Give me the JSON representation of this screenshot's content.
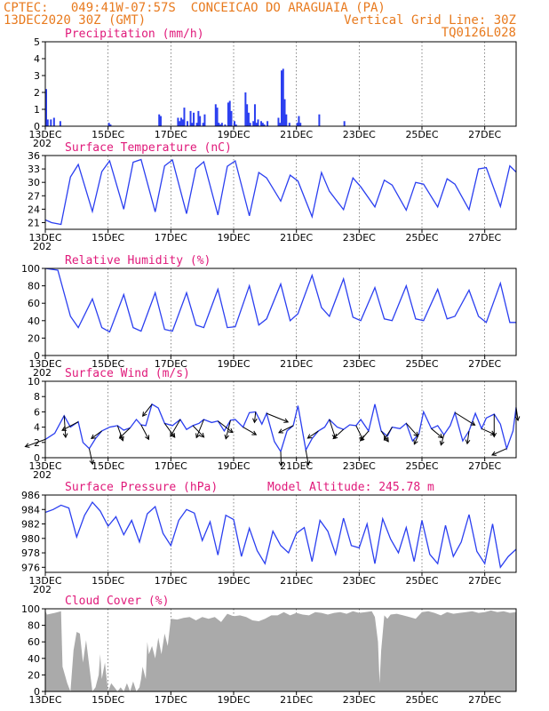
{
  "header": {
    "line1_left": "CPTEC:   049:41W-07:57S  CONCEICAO DO ARAGUAIA (PA)",
    "line2_left": "13DEC2020 30Z (GMT)",
    "line2_right": "Vertical Grid Line: 30Z",
    "line3_right": "TQ0126L028"
  },
  "colors": {
    "line": "#2b3ff0",
    "bar": "#2b3ff0",
    "cloud": "#aaaaaa",
    "title": "#e0197a",
    "header": "#e87a1e"
  },
  "x_axis": {
    "tick_labels": [
      "13DEC",
      "15DEC",
      "17DEC",
      "19DEC",
      "21DEC",
      "23DEC",
      "25DEC",
      "27DEC"
    ],
    "sub_label": "202"
  },
  "chart_data": [
    {
      "type": "bar",
      "title": "Precipitation (mm/h)",
      "ylim": [
        0,
        5
      ],
      "yticks": [
        0,
        1,
        2,
        3,
        4,
        5
      ],
      "x": [
        0.0,
        0.05,
        0.15,
        0.25,
        0.45,
        2.0,
        2.05,
        3.6,
        3.65,
        4.2,
        4.25,
        4.3,
        4.35,
        4.4,
        4.5,
        4.6,
        4.65,
        4.7,
        4.8,
        4.85,
        4.9,
        5.0,
        5.05,
        5.4,
        5.45,
        5.5,
        5.55,
        5.6,
        5.7,
        5.8,
        5.85,
        5.9,
        6.0,
        6.05,
        6.35,
        6.4,
        6.45,
        6.5,
        6.6,
        6.65,
        6.7,
        6.75,
        6.85,
        6.9,
        6.95,
        7.05,
        7.4,
        7.45,
        7.5,
        7.55,
        7.6,
        7.65,
        7.75,
        8.0,
        8.05,
        8.1,
        8.7,
        9.5
      ],
      "values": [
        2.2,
        0.4,
        0.4,
        0.5,
        0.3,
        0.2,
        0.1,
        0.7,
        0.6,
        0.5,
        0.3,
        0.5,
        0.4,
        1.1,
        0.3,
        0.9,
        0.2,
        0.8,
        0.2,
        0.9,
        0.6,
        0.2,
        0.7,
        1.3,
        1.1,
        0.2,
        0.1,
        0.2,
        0.1,
        1.4,
        1.5,
        0.9,
        0.3,
        0.1,
        2.0,
        1.3,
        0.8,
        0.2,
        0.3,
        1.3,
        0.2,
        0.4,
        0.3,
        0.2,
        0.1,
        0.3,
        0.5,
        0.2,
        3.3,
        3.4,
        1.6,
        0.7,
        0.2,
        0.2,
        0.6,
        0.2,
        0.7,
        0.3
      ]
    },
    {
      "type": "line",
      "title": "Surface Temperature (nC)",
      "ylim": [
        19.5,
        36
      ],
      "yticks": [
        21,
        24,
        27,
        30,
        33,
        36
      ],
      "x": [
        0.0,
        0.2,
        0.5,
        0.8,
        1.05,
        1.5,
        1.8,
        2.05,
        2.5,
        2.8,
        3.05,
        3.5,
        3.8,
        4.05,
        4.5,
        4.8,
        5.05,
        5.5,
        5.8,
        6.05,
        6.5,
        6.8,
        7.05,
        7.5,
        7.8,
        8.05,
        8.5,
        8.8,
        9.05,
        9.5,
        9.8,
        10.05,
        10.5,
        10.8,
        11.05,
        11.5,
        11.8,
        12.05,
        12.5,
        12.8,
        13.05,
        13.5,
        13.8,
        14.05,
        14.5,
        14.8,
        15.0
      ],
      "values": [
        21.6,
        21.0,
        20.6,
        31.2,
        34.0,
        23.5,
        32.4,
        34.8,
        24.0,
        34.5,
        35.1,
        23.4,
        33.7,
        35.0,
        23.0,
        33.1,
        34.6,
        22.7,
        33.6,
        34.8,
        22.5,
        32.2,
        31.0,
        25.8,
        31.6,
        30.3,
        22.3,
        32.2,
        28.0,
        23.9,
        31.0,
        29.0,
        24.5,
        30.5,
        29.4,
        23.8,
        30.0,
        29.6,
        24.5,
        30.8,
        29.6,
        23.9,
        33.0,
        33.3,
        24.6,
        33.7,
        32.3
      ]
    },
    {
      "type": "line",
      "title": "Relative Humidity (%)",
      "ylim": [
        0,
        100
      ],
      "yticks": [
        0,
        20,
        40,
        60,
        80,
        100
      ],
      "x": [
        0.0,
        0.4,
        0.8,
        1.05,
        1.5,
        1.8,
        2.05,
        2.5,
        2.8,
        3.05,
        3.5,
        3.8,
        4.05,
        4.5,
        4.8,
        5.05,
        5.5,
        5.8,
        6.05,
        6.5,
        6.8,
        7.05,
        7.5,
        7.8,
        8.05,
        8.5,
        8.8,
        9.05,
        9.5,
        9.8,
        10.05,
        10.5,
        10.8,
        11.05,
        11.5,
        11.8,
        12.05,
        12.5,
        12.8,
        13.05,
        13.5,
        13.8,
        14.05,
        14.5,
        14.8,
        15.0
      ],
      "values": [
        100,
        98,
        45,
        32,
        65,
        32,
        27,
        70,
        32,
        28,
        72,
        30,
        28,
        72,
        35,
        32,
        76,
        32,
        33,
        80,
        35,
        42,
        82,
        40,
        48,
        92,
        55,
        45,
        88,
        44,
        40,
        78,
        42,
        40,
        80,
        42,
        40,
        76,
        42,
        45,
        75,
        45,
        38,
        83,
        38,
        38
      ]
    },
    {
      "type": "line",
      "title": "Surface Wind (m/s)",
      "ylim": [
        0,
        10
      ],
      "yticks": [
        0,
        2,
        4,
        6,
        8,
        10
      ],
      "x": [
        0.0,
        0.3,
        0.6,
        0.8,
        1.05,
        1.2,
        1.4,
        1.6,
        1.8,
        2.05,
        2.3,
        2.5,
        2.7,
        2.9,
        3.05,
        3.2,
        3.4,
        3.6,
        3.8,
        4.05,
        4.3,
        4.5,
        4.7,
        4.9,
        5.05,
        5.3,
        5.5,
        5.7,
        5.9,
        6.05,
        6.3,
        6.5,
        6.7,
        6.9,
        7.05,
        7.3,
        7.5,
        7.7,
        7.9,
        8.05,
        8.3,
        8.5,
        8.7,
        8.9,
        9.05,
        9.3,
        9.5,
        9.7,
        9.9,
        10.05,
        10.3,
        10.5,
        10.7,
        10.9,
        11.05,
        11.3,
        11.5,
        11.7,
        11.9,
        12.05,
        12.3,
        12.5,
        12.7,
        12.9,
        13.05,
        13.3,
        13.5,
        13.7,
        13.9,
        14.05,
        14.3,
        14.5,
        14.7,
        14.9,
        15.0
      ],
      "values": [
        2.4,
        3.2,
        5.5,
        4.0,
        4.7,
        2.0,
        1.2,
        2.5,
        3.5,
        4.0,
        4.2,
        3.6,
        3.9,
        5.0,
        4.3,
        4.2,
        7.0,
        6.5,
        4.5,
        4.2,
        5.0,
        3.7,
        4.2,
        4.5,
        5.0,
        4.6,
        4.8,
        3.5,
        4.9,
        5.0,
        4.0,
        5.9,
        6.0,
        4.4,
        5.8,
        2.1,
        0.8,
        3.5,
        4.2,
        6.8,
        1.0,
        2.5,
        3.5,
        4.0,
        5.0,
        4.0,
        3.7,
        4.3,
        4.2,
        5.0,
        3.5,
        7.0,
        3.5,
        2.8,
        4.0,
        3.8,
        4.5,
        2.2,
        3.1,
        6.0,
        3.8,
        4.2,
        3.0,
        4.2,
        5.9,
        2.2,
        3.5,
        5.8,
        3.8,
        5.2,
        5.7,
        4.4,
        1.2,
        3.5,
        6.6
      ]
    },
    {
      "type": "line",
      "title": "Surface Pressure (hPa)",
      "annotation": "Model Altitude: 245.78 m",
      "ylim": [
        975.3,
        986
      ],
      "yticks": [
        976,
        978,
        980,
        982,
        984,
        986
      ],
      "x": [
        0.0,
        0.25,
        0.5,
        0.75,
        1.0,
        1.25,
        1.5,
        1.75,
        2.0,
        2.25,
        2.5,
        2.75,
        3.0,
        3.25,
        3.5,
        3.75,
        4.0,
        4.25,
        4.5,
        4.75,
        5.0,
        5.25,
        5.5,
        5.75,
        6.0,
        6.25,
        6.5,
        6.75,
        7.0,
        7.25,
        7.5,
        7.75,
        8.0,
        8.25,
        8.5,
        8.75,
        9.0,
        9.25,
        9.5,
        9.75,
        10.0,
        10.25,
        10.5,
        10.75,
        11.0,
        11.25,
        11.5,
        11.75,
        12.0,
        12.25,
        12.5,
        12.75,
        13.0,
        13.25,
        13.5,
        13.75,
        14.0,
        14.25,
        14.5,
        14.75,
        15.0
      ],
      "values": [
        983.6,
        984.0,
        984.6,
        984.2,
        980.2,
        983.2,
        985.0,
        983.8,
        981.7,
        983.0,
        980.5,
        982.5,
        979.5,
        983.4,
        984.4,
        980.7,
        979.0,
        982.5,
        984.0,
        983.5,
        979.7,
        982.3,
        977.7,
        983.2,
        982.6,
        977.5,
        981.4,
        978.3,
        976.5,
        981.0,
        979.0,
        978.0,
        980.7,
        981.5,
        976.8,
        982.5,
        981.0,
        977.8,
        982.8,
        979.0,
        978.7,
        982.0,
        976.5,
        982.7,
        979.9,
        978.0,
        981.5,
        976.8,
        982.5,
        977.8,
        976.5,
        981.8,
        977.5,
        979.5,
        983.3,
        978.2,
        976.5,
        982.0,
        976.0,
        977.5,
        978.5
      ]
    },
    {
      "type": "area",
      "title": "Cloud Cover (%)",
      "ylim": [
        0,
        100
      ],
      "yticks": [
        0,
        20,
        40,
        60,
        80,
        100
      ],
      "x": [
        0.0,
        0.05,
        0.3,
        0.5,
        0.55,
        0.7,
        0.8,
        0.9,
        1.0,
        1.1,
        1.2,
        1.3,
        1.5,
        1.6,
        1.7,
        1.75,
        1.8,
        1.9,
        2.0,
        2.1,
        2.3,
        2.4,
        2.5,
        2.6,
        2.7,
        2.8,
        2.9,
        3.0,
        3.05,
        3.1,
        3.2,
        3.25,
        3.3,
        3.4,
        3.5,
        3.6,
        3.7,
        3.8,
        3.9,
        4.0,
        4.2,
        4.4,
        4.6,
        4.8,
        5.0,
        5.2,
        5.4,
        5.6,
        5.8,
        6.0,
        6.2,
        6.4,
        6.6,
        6.8,
        7.0,
        7.2,
        7.4,
        7.6,
        7.8,
        8.0,
        8.2,
        8.4,
        8.6,
        8.8,
        9.0,
        9.2,
        9.4,
        9.6,
        9.8,
        10.0,
        10.2,
        10.4,
        10.5,
        10.6,
        10.65,
        10.7,
        10.8,
        10.9,
        11.0,
        11.2,
        11.4,
        11.6,
        11.8,
        12.0,
        12.2,
        12.4,
        12.6,
        12.8,
        13.0,
        13.2,
        13.4,
        13.6,
        13.8,
        14.0,
        14.2,
        14.4,
        14.6,
        14.8,
        15.0
      ],
      "values": [
        98,
        93,
        95,
        97,
        30,
        10,
        0,
        50,
        72,
        70,
        35,
        62,
        0,
        5,
        20,
        45,
        15,
        35,
        0,
        10,
        0,
        5,
        0,
        10,
        0,
        12,
        0,
        5,
        15,
        30,
        15,
        60,
        45,
        55,
        40,
        65,
        45,
        70,
        55,
        88,
        87,
        89,
        90,
        86,
        90,
        88,
        90,
        84,
        94,
        91,
        92,
        90,
        86,
        85,
        88,
        92,
        92,
        96,
        92,
        95,
        93,
        92,
        96,
        95,
        93,
        95,
        96,
        94,
        97,
        95,
        96,
        97,
        90,
        60,
        10,
        50,
        92,
        88,
        93,
        94,
        92,
        90,
        88,
        96,
        97,
        95,
        92,
        96,
        94,
        95,
        96,
        97,
        95,
        96,
        98,
        96,
        97,
        95,
        96
      ]
    }
  ]
}
